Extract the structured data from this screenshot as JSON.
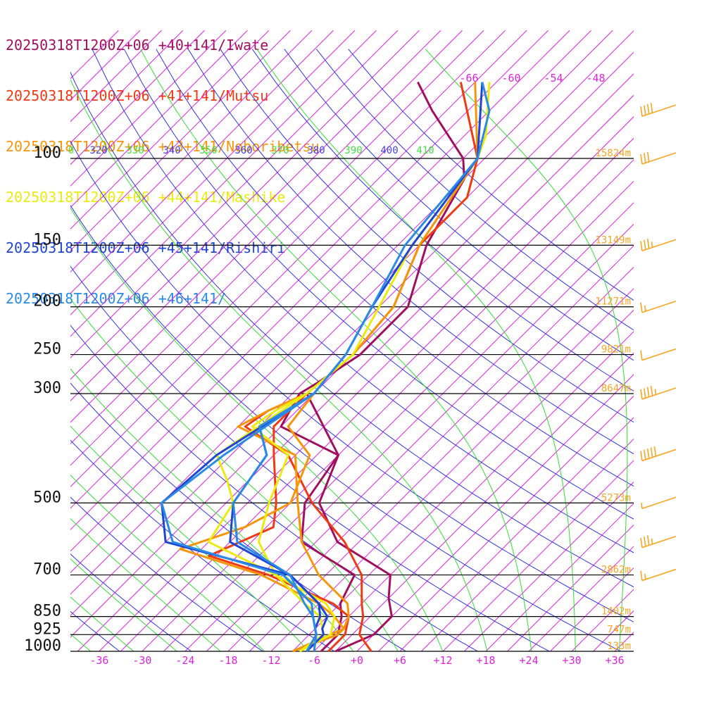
{
  "legend": [
    {
      "label": "20250318T1200Z+06 +40+141/Iwate",
      "color": "#a0105e"
    },
    {
      "label": "20250318T1200Z+06 +41+141/Mutsu",
      "color": "#f03a14"
    },
    {
      "label": "20250318T1200Z+06 +43+141/Noboribetsu",
      "color": "#f5960a"
    },
    {
      "label": "20250318T1200Z+06 +44+141/Mashike",
      "color": "#ebeb10"
    },
    {
      "label": "20250318T1200Z+06 +45+141/Rishiri",
      "color": "#1e46d2"
    },
    {
      "label": "20250318T1200Z+06 +46+141/",
      "color": "#2a8ae6"
    }
  ],
  "chart_data": {
    "type": "line",
    "subtype": "skew-T log-p sounding",
    "y_axis": {
      "pressure_levels": [
        "100",
        "150",
        "200",
        "250",
        "300",
        "500",
        "700",
        "850",
        "925",
        "1000"
      ],
      "scale": "log",
      "range_hPa": [
        1000,
        100
      ]
    },
    "x_axis": {
      "tick_labels": [
        "-36",
        "-30",
        "-24",
        "-18",
        "-12",
        "-6",
        "+0",
        "+6",
        "+12",
        "+18",
        "+24",
        "+30",
        "+36"
      ],
      "values": [
        -36,
        -30,
        -24,
        -18,
        -12,
        -6,
        0,
        6,
        12,
        18,
        24,
        30,
        36
      ],
      "range": [
        -40,
        40
      ]
    },
    "isotherm_top_labels": [
      "-66",
      "-60",
      "-54",
      "-48"
    ],
    "theta_labels": [
      {
        "text": "0",
        "color": "#44dd44"
      },
      {
        "text": "320",
        "color": "#4444dd"
      },
      {
        "text": "330",
        "color": "#44dd44"
      },
      {
        "text": "340",
        "color": "#4444dd"
      },
      {
        "text": "350",
        "color": "#44dd44"
      },
      {
        "text": "360",
        "color": "#4444dd"
      },
      {
        "text": "370",
        "color": "#44dd44"
      },
      {
        "text": "380",
        "color": "#4444dd"
      },
      {
        "text": "390",
        "color": "#44dd44"
      },
      {
        "text": "400",
        "color": "#4444dd"
      },
      {
        "text": "410",
        "color": "#44dd44"
      }
    ],
    "height_labels": [
      {
        "p": 100,
        "text": "15824m"
      },
      {
        "p": 150,
        "text": "13149m"
      },
      {
        "p": 200,
        "text": "11271m"
      },
      {
        "p": 250,
        "text": "9821m"
      },
      {
        "p": 300,
        "text": "8647m"
      },
      {
        "p": 500,
        "text": "5273m"
      },
      {
        "p": 700,
        "text": "2862m"
      },
      {
        "p": 850,
        "text": "1402m"
      },
      {
        "p": 925,
        "text": "747m"
      },
      {
        "p": 1000,
        "text": "133m"
      }
    ],
    "colors": {
      "isotherm": "#dd22dd",
      "dry_adiabat": "#3333dd",
      "moist_adiabat": "#33dd33",
      "isobar": "#000000",
      "height_label": "#f5a623",
      "wind_barb": "#f5a623"
    },
    "series": [
      {
        "name": "20250318T1200Z+06 +40+141/Iwate",
        "color": "#a0105e",
        "temperature": [
          [
            70,
            -71
          ],
          [
            80,
            -65
          ],
          [
            100,
            -54
          ],
          [
            110,
            -51
          ],
          [
            150,
            -47
          ],
          [
            200,
            -41
          ],
          [
            210,
            -41
          ],
          [
            250,
            -41
          ],
          [
            285,
            -43
          ],
          [
            300,
            -44
          ],
          [
            350,
            -42
          ],
          [
            400,
            -30
          ],
          [
            500,
            -26
          ],
          [
            600,
            -18
          ],
          [
            700,
            -6
          ],
          [
            780,
            -3
          ],
          [
            850,
            0
          ],
          [
            900,
            0
          ],
          [
            925,
            0
          ],
          [
            1000,
            -3
          ]
        ],
        "dewpoint": [
          [
            300,
            -43
          ],
          [
            400,
            -30
          ],
          [
            500,
            -28
          ],
          [
            600,
            -23
          ],
          [
            700,
            -11
          ],
          [
            800,
            -9
          ],
          [
            850,
            -7
          ],
          [
            925,
            -5
          ],
          [
            1000,
            -5
          ]
        ]
      },
      {
        "name": "20250318T1200Z+06 +41+141/Mutsu",
        "color": "#f03a14",
        "temperature": [
          [
            70,
            -65
          ],
          [
            100,
            -52
          ],
          [
            120,
            -48
          ],
          [
            150,
            -48
          ],
          [
            200,
            -43
          ],
          [
            250,
            -42
          ],
          [
            300,
            -43
          ],
          [
            325,
            -46
          ],
          [
            350,
            -47
          ],
          [
            400,
            -37
          ],
          [
            500,
            -27
          ],
          [
            600,
            -17
          ],
          [
            700,
            -10
          ],
          [
            800,
            -6
          ],
          [
            850,
            -4
          ],
          [
            925,
            -2
          ],
          [
            1000,
            2
          ]
        ],
        "dewpoint": [
          [
            300,
            -43
          ],
          [
            350,
            -43
          ],
          [
            400,
            -39
          ],
          [
            500,
            -32
          ],
          [
            560,
            -29
          ],
          [
            640,
            -34
          ],
          [
            700,
            -23
          ],
          [
            800,
            -10
          ],
          [
            850,
            -6
          ],
          [
            925,
            -4
          ],
          [
            1000,
            -4
          ]
        ]
      },
      {
        "name": "20250318T1200Z+06 +43+141/Noboribetsu",
        "color": "#f5960a",
        "temperature": [
          [
            70,
            -63
          ],
          [
            100,
            -52
          ],
          [
            150,
            -48
          ],
          [
            200,
            -43
          ],
          [
            250,
            -42
          ],
          [
            300,
            -43
          ],
          [
            325,
            -46
          ],
          [
            350,
            -48
          ],
          [
            400,
            -36
          ],
          [
            500,
            -29
          ],
          [
            600,
            -23
          ],
          [
            700,
            -16
          ],
          [
            800,
            -8
          ],
          [
            850,
            -6
          ],
          [
            900,
            -5
          ],
          [
            925,
            -5
          ],
          [
            1000,
            -9
          ]
        ],
        "dewpoint": [
          [
            300,
            -42
          ],
          [
            350,
            -41
          ],
          [
            400,
            -34
          ],
          [
            500,
            -30
          ],
          [
            560,
            -33
          ],
          [
            620,
            -39
          ],
          [
            700,
            -24
          ],
          [
            800,
            -12
          ],
          [
            850,
            -8
          ],
          [
            900,
            -5
          ],
          [
            925,
            -6
          ],
          [
            1000,
            -9
          ]
        ]
      },
      {
        "name": "20250318T1200Z+06 +44+141/Mashike",
        "color": "#ebeb10",
        "temperature": [
          [
            70,
            -61
          ],
          [
            90,
            -54
          ],
          [
            100,
            -52
          ],
          [
            150,
            -49
          ],
          [
            200,
            -45
          ],
          [
            250,
            -42
          ],
          [
            300,
            -43
          ],
          [
            325,
            -45
          ],
          [
            350,
            -46
          ],
          [
            400,
            -37
          ],
          [
            500,
            -33
          ],
          [
            600,
            -29
          ],
          [
            700,
            -22
          ],
          [
            800,
            -11
          ],
          [
            850,
            -8
          ],
          [
            925,
            -6
          ],
          [
            1000,
            -8
          ]
        ],
        "dewpoint": [
          [
            300,
            -43
          ],
          [
            400,
            -47
          ],
          [
            450,
            -42
          ],
          [
            500,
            -38
          ],
          [
            600,
            -36
          ],
          [
            700,
            -22
          ],
          [
            800,
            -14
          ],
          [
            850,
            -10
          ],
          [
            925,
            -7
          ],
          [
            1000,
            -8
          ]
        ]
      },
      {
        "name": "20250318T1200Z+06 +45+141/Rishiri",
        "color": "#1e46d2",
        "temperature": [
          [
            70,
            -62
          ],
          [
            100,
            -52
          ],
          [
            150,
            -49
          ],
          [
            200,
            -46
          ],
          [
            250,
            -43
          ],
          [
            300,
            -42
          ],
          [
            350,
            -45
          ],
          [
            400,
            -40
          ],
          [
            500,
            -38
          ],
          [
            600,
            -33
          ],
          [
            700,
            -20
          ],
          [
            800,
            -12
          ],
          [
            850,
            -10
          ],
          [
            900,
            -9
          ],
          [
            925,
            -8
          ],
          [
            1000,
            -7
          ]
        ],
        "dewpoint": [
          [
            300,
            -42
          ],
          [
            400,
            -47
          ],
          [
            500,
            -48
          ],
          [
            600,
            -42
          ],
          [
            700,
            -20
          ],
          [
            800,
            -12
          ],
          [
            850,
            -9
          ],
          [
            900,
            -8
          ],
          [
            925,
            -7
          ],
          [
            1000,
            -7
          ]
        ]
      },
      {
        "name": "20250318T1200Z+06 +46+141/",
        "color": "#2a8ae6",
        "temperature": [
          [
            70,
            -62
          ],
          [
            80,
            -57
          ],
          [
            100,
            -52
          ],
          [
            150,
            -50
          ],
          [
            200,
            -46
          ],
          [
            250,
            -43
          ],
          [
            300,
            -42
          ],
          [
            350,
            -45
          ],
          [
            400,
            -40
          ],
          [
            500,
            -38
          ],
          [
            600,
            -32
          ],
          [
            700,
            -20
          ],
          [
            800,
            -14
          ],
          [
            850,
            -11
          ],
          [
            900,
            -9
          ],
          [
            925,
            -8
          ],
          [
            1000,
            -6
          ]
        ],
        "dewpoint": [
          [
            300,
            -42
          ],
          [
            400,
            -46
          ],
          [
            500,
            -48
          ],
          [
            600,
            -41
          ],
          [
            700,
            -21
          ],
          [
            800,
            -13
          ],
          [
            850,
            -11
          ],
          [
            925,
            -8
          ],
          [
            1000,
            -7
          ]
        ]
      }
    ],
    "wind_barbs": [
      {
        "p": 80,
        "speed_kt": 40
      },
      {
        "p": 100,
        "speed_kt": 30
      },
      {
        "p": 150,
        "speed_kt": 35
      },
      {
        "p": 200,
        "speed_kt": 15
      },
      {
        "p": 250,
        "speed_kt": 10
      },
      {
        "p": 300,
        "speed_kt": 45
      },
      {
        "p": 400,
        "speed_kt": 50
      },
      {
        "p": 500,
        "speed_kt": 5
      },
      {
        "p": 600,
        "speed_kt": 35
      },
      {
        "p": 700,
        "speed_kt": 15
      }
    ],
    "grid": true,
    "legend_position": "top-left"
  }
}
